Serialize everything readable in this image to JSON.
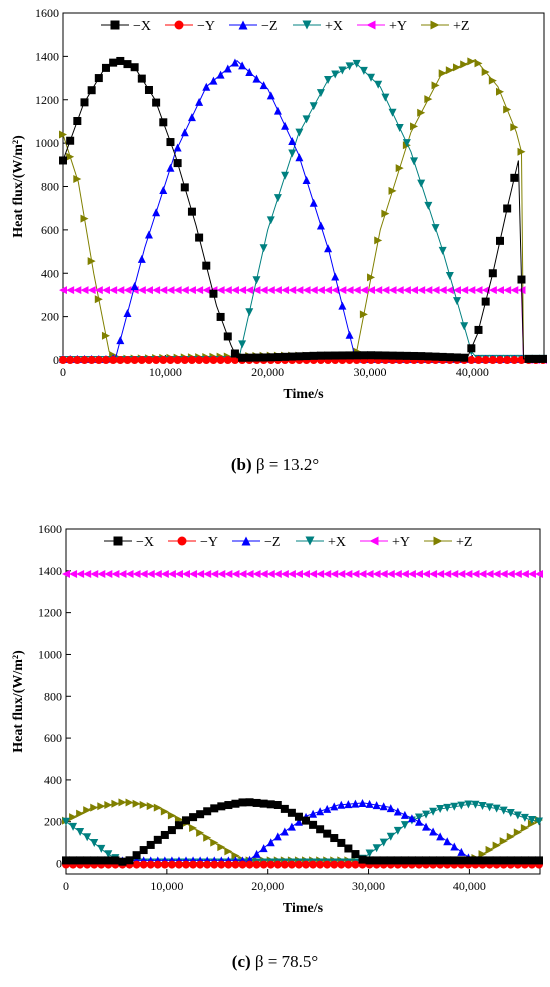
{
  "chart_data": [
    {
      "type": "scatter",
      "caption_label": "(b)",
      "caption_text": "β = 13.2°",
      "xlabel": "Time/s",
      "ylabel": "Heat flux/(W/m²)",
      "xlim": [
        0,
        47000
      ],
      "ylim": [
        0,
        1600
      ],
      "xticks": [
        0,
        10000,
        20000,
        30000,
        40000
      ],
      "xtick_labels": [
        "0",
        "10,000",
        "20,000",
        "30,000",
        "40,000"
      ],
      "yticks": [
        0,
        200,
        400,
        600,
        800,
        1000,
        1200,
        1400,
        1600
      ],
      "ytick_labels": [
        "0",
        "200",
        "400",
        "600",
        "800",
        "1000",
        "1200",
        "1400",
        "1600"
      ],
      "grid": false,
      "legend_position": "top",
      "series": [
        {
          "name": "−X",
          "color": "#000000",
          "marker": "square",
          "x": [
            0,
            2000,
            4000,
            5300,
            7000,
            9000,
            11000,
            13000,
            15000,
            16400,
            17000,
            20000,
            25000,
            30000,
            35000,
            39500,
            40500,
            42000,
            43500,
            44500,
            45000,
            47000
          ],
          "y": [
            920,
            1180,
            1340,
            1385,
            1350,
            1200,
            940,
            620,
            250,
            70,
            10,
            12,
            20,
            22,
            18,
            10,
            120,
            400,
            720,
            920,
            5,
            5
          ]
        },
        {
          "name": "−Y",
          "color": "#ff0000",
          "marker": "circle",
          "x": [
            0,
            10000,
            20000,
            30000,
            40000,
            47000
          ],
          "y": [
            0,
            0,
            0,
            0,
            0,
            0
          ]
        },
        {
          "name": "−Z",
          "color": "#0000ff",
          "marker": "triangle-up",
          "x": [
            0,
            4800,
            5200,
            8000,
            11000,
            14000,
            17000,
            20000,
            23000,
            26000,
            28400,
            29000,
            35000,
            40000,
            45000,
            47000
          ],
          "y": [
            5,
            5,
            20,
            520,
            960,
            1260,
            1380,
            1250,
            950,
            500,
            40,
            5,
            5,
            5,
            5,
            5
          ]
        },
        {
          "name": "+X",
          "color": "#008080",
          "marker": "triangle-down",
          "x": [
            0,
            10000,
            16700,
            17300,
            20000,
            23000,
            26000,
            28600,
            31000,
            34000,
            37000,
            39900,
            40500,
            45000,
            47000
          ],
          "y": [
            0,
            0,
            0,
            30,
            600,
            1040,
            1300,
            1370,
            1260,
            960,
            520,
            40,
            5,
            5,
            5
          ]
        },
        {
          "name": "+Y",
          "color": "#ff00ff",
          "marker": "triangle-left",
          "x": [
            0,
            5000,
            10000,
            15000,
            20000,
            25000,
            30000,
            35000,
            40000,
            44800,
            45000,
            47000
          ],
          "y": [
            322,
            322,
            322,
            322,
            322,
            322,
            322,
            322,
            322,
            322,
            0,
            0
          ]
        },
        {
          "name": "+Z",
          "color": "#808000",
          "marker": "triangle-right",
          "x": [
            0,
            1500,
            3000,
            4500,
            5300,
            10000,
            20000,
            28000,
            28700,
            31000,
            34000,
            37000,
            40300,
            42500,
            44300,
            44800,
            45000,
            47000
          ],
          "y": [
            1040,
            820,
            400,
            40,
            5,
            10,
            20,
            20,
            40,
            600,
            1050,
            1320,
            1385,
            1260,
            1050,
            960,
            5,
            5
          ]
        }
      ]
    },
    {
      "type": "scatter",
      "caption_label": "(c)",
      "caption_text": "β = 78.5°",
      "xlabel": "Time/s",
      "ylabel": "Heat flux/(W/m²)",
      "xlim": [
        0,
        47000
      ],
      "ylim": [
        -50,
        1600
      ],
      "xticks": [
        0,
        10000,
        20000,
        30000,
        40000
      ],
      "xtick_labels": [
        "0",
        "10,000",
        "20,000",
        "30,000",
        "40,000"
      ],
      "yticks": [
        0,
        200,
        400,
        600,
        800,
        1000,
        1200,
        1400,
        1600
      ],
      "ytick_labels": [
        "0",
        "200",
        "400",
        "600",
        "800",
        "1000",
        "1200",
        "1400",
        "1600"
      ],
      "grid": false,
      "legend_position": "top",
      "series": [
        {
          "name": "−X",
          "color": "#000000",
          "marker": "square",
          "x": [
            0,
            5000,
            6000,
            9000,
            12000,
            15000,
            17800,
            21000,
            24000,
            27000,
            29500,
            35000,
            40000,
            47000
          ],
          "y": [
            15,
            15,
            5,
            110,
            210,
            270,
            295,
            280,
            200,
            110,
            15,
            15,
            15,
            15
          ]
        },
        {
          "name": "−Y",
          "color": "#ff0000",
          "marker": "circle",
          "x": [
            0,
            10000,
            20000,
            30000,
            40000,
            47000
          ],
          "y": [
            -5,
            -5,
            -5,
            -5,
            -5,
            -5
          ]
        },
        {
          "name": "−Z",
          "color": "#0000ff",
          "marker": "triangle-up",
          "x": [
            0,
            10000,
            17500,
            18000,
            21000,
            24000,
            27000,
            29500,
            32000,
            35000,
            38000,
            40300,
            41000,
            47000
          ],
          "y": [
            15,
            15,
            15,
            10,
            130,
            230,
            280,
            290,
            270,
            200,
            100,
            15,
            15,
            15
          ]
        },
        {
          "name": "+X",
          "color": "#008080",
          "marker": "triangle-down",
          "x": [
            0,
            2000,
            4000,
            5700,
            10000,
            20000,
            28900,
            31000,
            34000,
            37000,
            40200,
            43000,
            46000,
            47000
          ],
          "y": [
            200,
            130,
            50,
            5,
            5,
            5,
            5,
            80,
            200,
            260,
            285,
            260,
            210,
            200
          ]
        },
        {
          "name": "+Y",
          "color": "#ff00ff",
          "marker": "triangle-left",
          "x": [
            0,
            10000,
            20000,
            30000,
            40000,
            47000
          ],
          "y": [
            1385,
            1385,
            1385,
            1385,
            1385,
            1385
          ]
        },
        {
          "name": "+Z",
          "color": "#808000",
          "marker": "triangle-right",
          "x": [
            0,
            2500,
            5900,
            9000,
            12000,
            15000,
            17600,
            18000,
            25000,
            30000,
            35000,
            40000,
            40800,
            43500,
            46500,
            47000
          ],
          "y": [
            205,
            265,
            295,
            270,
            190,
            90,
            15,
            15,
            15,
            15,
            15,
            15,
            30,
            110,
            200,
            210
          ]
        }
      ]
    }
  ]
}
